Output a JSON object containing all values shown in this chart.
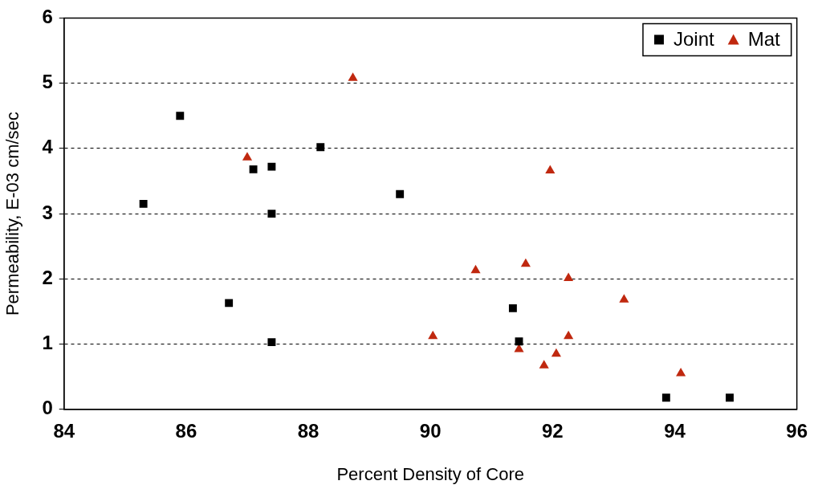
{
  "chart_data": {
    "type": "scatter",
    "xlabel": "Percent Density of Core",
    "ylabel": "Permeability, E-03 cm/sec",
    "xlim": [
      84,
      96
    ],
    "xticks": [
      84,
      86,
      88,
      90,
      92,
      94,
      96
    ],
    "ylim": [
      0,
      6
    ],
    "yticks": [
      0,
      1,
      2,
      3,
      4,
      5,
      6
    ],
    "grid": "y",
    "line_style": "dashed",
    "legend": "top right",
    "series": [
      {
        "name": "Joint",
        "color": "#000000",
        "marker": "square",
        "x": [
          85.3,
          85.9,
          86.7,
          87.1,
          87.4,
          87.4,
          87.4,
          88.2,
          89.5,
          91.35,
          91.45,
          93.86,
          94.9
        ],
        "values": [
          3.15,
          4.5,
          1.63,
          3.68,
          3.72,
          3.0,
          1.03,
          4.02,
          3.3,
          1.55,
          1.04,
          0.18,
          0.18
        ]
      },
      {
        "name": "Mat",
        "color": "#c0280f",
        "marker": "triangle",
        "x": [
          87.0,
          88.73,
          90.04,
          90.74,
          91.56,
          91.45,
          91.86,
          91.96,
          92.06,
          92.26,
          92.26,
          93.17,
          94.1
        ],
        "values": [
          3.86,
          5.08,
          1.12,
          2.13,
          2.23,
          0.92,
          0.67,
          3.66,
          0.85,
          2.01,
          1.12,
          1.68,
          0.55
        ]
      }
    ]
  }
}
